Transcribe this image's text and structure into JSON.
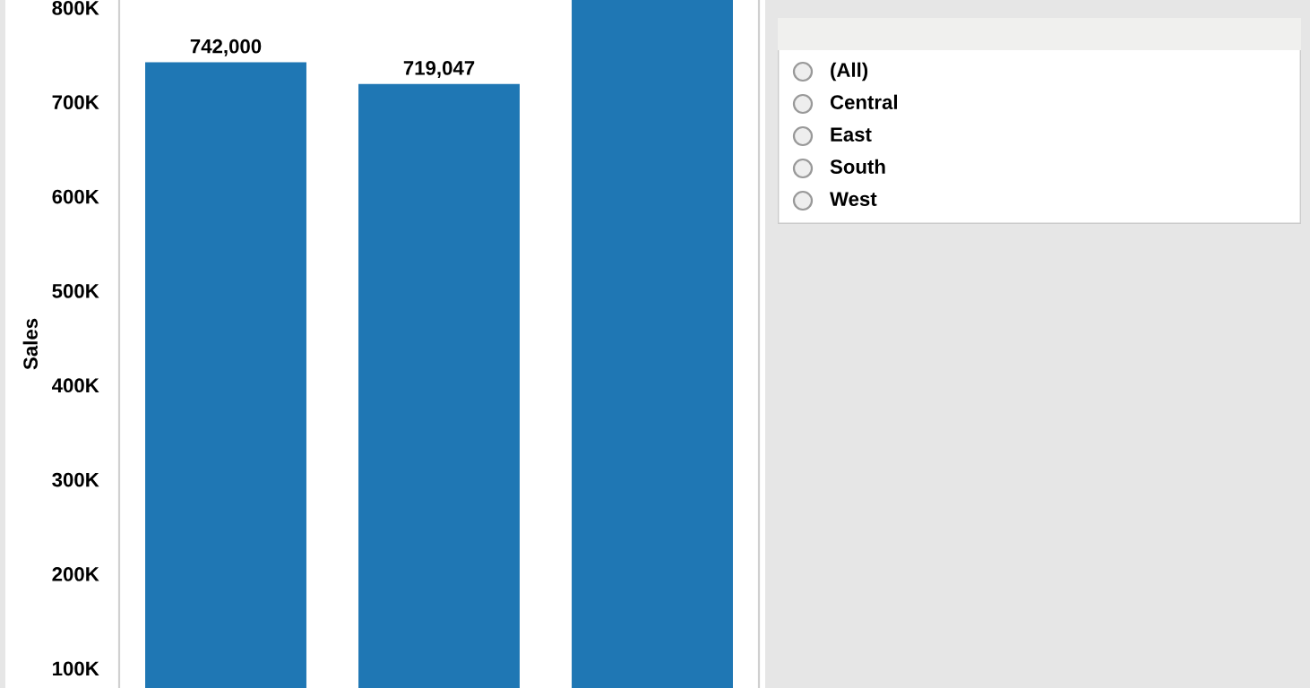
{
  "chart_data": [
    {
      "type": "bar",
      "ylabel": "Sales",
      "categories": [
        null,
        null,
        null
      ],
      "values": [
        742000,
        719047,
        808000
      ],
      "value_labels": [
        "742,000",
        "719,047",
        null
      ],
      "color": "#1f77b4",
      "ylim": [
        79000,
        808000
      ],
      "yticks": [
        {
          "value": 100000,
          "label": "100K"
        },
        {
          "value": 200000,
          "label": "200K"
        },
        {
          "value": 300000,
          "label": "300K"
        },
        {
          "value": 400000,
          "label": "400K"
        },
        {
          "value": 500000,
          "label": "500K"
        },
        {
          "value": 600000,
          "label": "600K"
        },
        {
          "value": 700000,
          "label": "700K"
        },
        {
          "value": 800000,
          "label": "800K"
        }
      ],
      "grid": false,
      "legend": false
    },
    {
      "type": "other",
      "categories": [
        "(All)",
        "Central",
        "East",
        "South",
        "West"
      ]
    }
  ]
}
